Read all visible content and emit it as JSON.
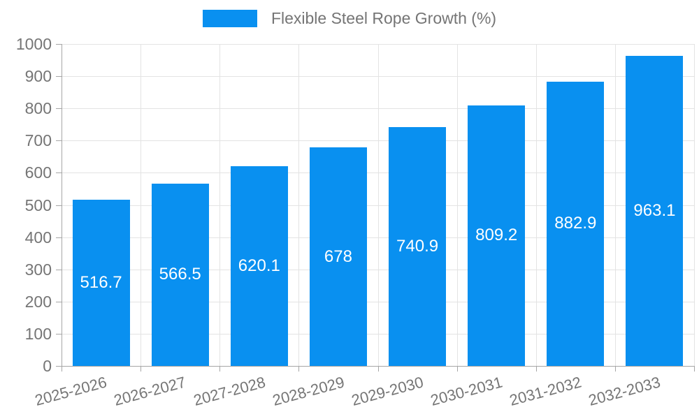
{
  "legend": {
    "label": "Flexible Steel Rope Growth (%)"
  },
  "chart_data": {
    "type": "bar",
    "title": "",
    "legend_entries": [
      "Flexible Steel Rope Growth (%)"
    ],
    "legend_position": "top",
    "categories": [
      "2025-2026",
      "2026-2027",
      "2027-2028",
      "2028-2029",
      "2029-2030",
      "2030-2031",
      "2031-2032",
      "2032-2033"
    ],
    "series": [
      {
        "name": "Flexible Steel Rope Growth (%)",
        "values": [
          516.7,
          566.5,
          620.1,
          678,
          740.9,
          809.2,
          882.9,
          963.1
        ]
      }
    ],
    "data_labels": [
      "516.7",
      "566.5",
      "620.1",
      "678",
      "740.9",
      "809.2",
      "882.9",
      "963.1"
    ],
    "xlabel": "",
    "ylabel": "",
    "ylim": [
      0,
      1000
    ],
    "yticks": [
      0,
      100,
      200,
      300,
      400,
      500,
      600,
      700,
      800,
      900,
      1000
    ],
    "grid": true,
    "x_label_rotation_deg": -15,
    "colors": {
      "bar": "#0990F0",
      "bar_label_text": "#ffffff",
      "axis_line": "#A6A6A6",
      "gridline": "#E3E3E3",
      "tick_text": "#757575"
    }
  }
}
